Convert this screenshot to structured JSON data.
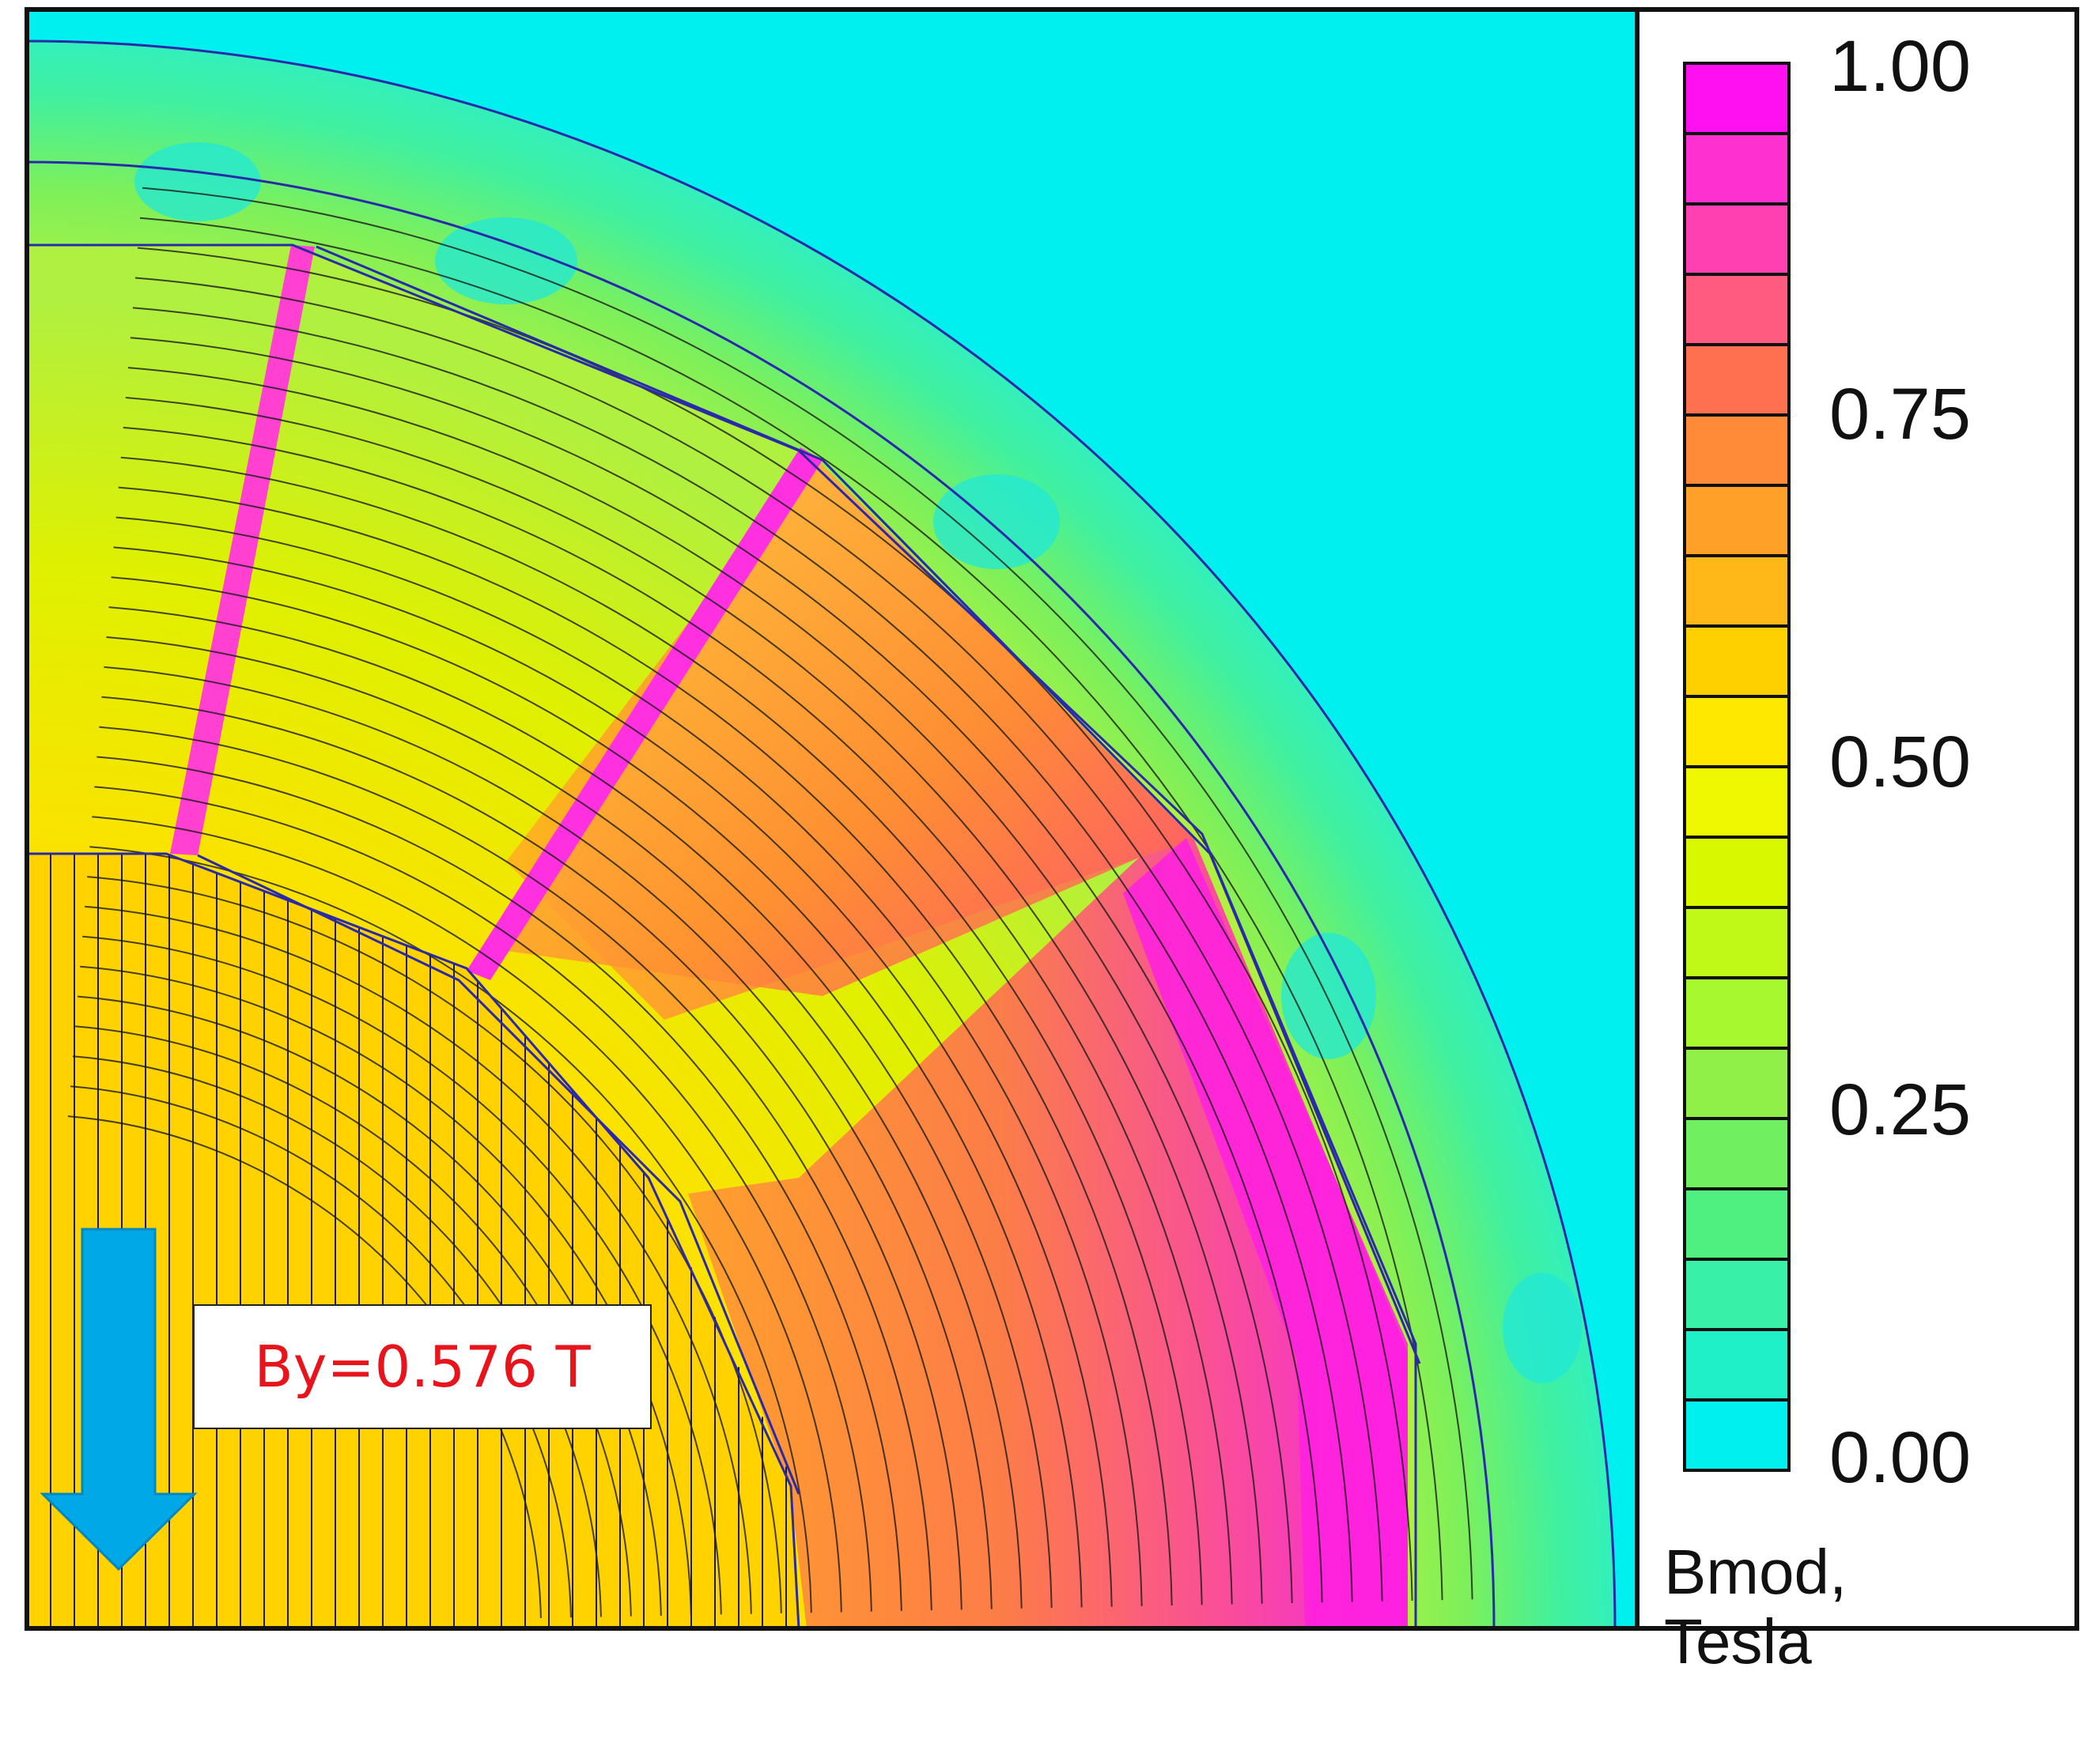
{
  "annotation": {
    "text": "By=0.576 T"
  },
  "legend": {
    "title_line1": "Bmod,",
    "title_line2": "Tesla",
    "tick_labels": [
      "1.00",
      "0.75",
      "0.50",
      "0.25",
      "0.00"
    ],
    "min": 0.0,
    "max": 1.0,
    "bands": 20
  },
  "arrow": {
    "direction": "down",
    "color": "#00a8e8"
  },
  "colors": {
    "air": "#00f0f0",
    "magnet": "#ffd200",
    "hot": "#ff10f0",
    "outline": "#2a2aa8",
    "flux_line": "#1a1a1a"
  }
}
